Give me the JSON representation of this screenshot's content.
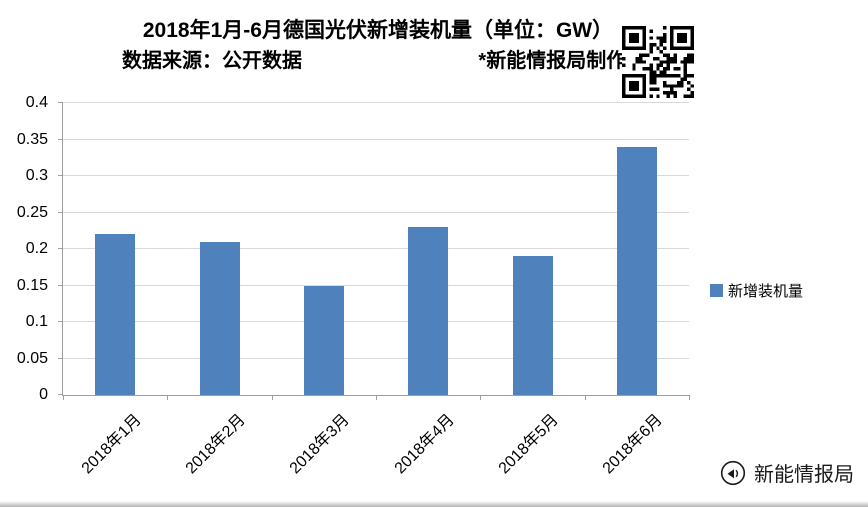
{
  "page": {
    "title_line1": "2018年1月-6月德国光伏新增装机量（单位：GW）",
    "title_line2_left": "数据来源：公开数据",
    "title_line2_right": "*新能情报局制作*",
    "watermark": "新能情报局"
  },
  "legend": {
    "label": "新增装机量"
  },
  "colors": {
    "bar": "#4F81BD",
    "gridline": "#D9D9D9",
    "axis": "#9E9E9E"
  },
  "chart_data": {
    "type": "bar",
    "title": "2018年1月-6月德国光伏新增装机量（单位：GW）",
    "categories": [
      "2018年1月",
      "2018年2月",
      "2018年3月",
      "2018年4月",
      "2018年5月",
      "2018年6月"
    ],
    "series": [
      {
        "name": "新增装机量",
        "values": [
          0.22,
          0.21,
          0.15,
          0.23,
          0.19,
          0.34
        ]
      }
    ],
    "xlabel": "",
    "ylabel": "",
    "ylim": [
      0,
      0.4
    ],
    "yticks": [
      0,
      0.05,
      0.1,
      0.15,
      0.2,
      0.25,
      0.3,
      0.35,
      0.4
    ],
    "grid": true,
    "legend_position": "right"
  }
}
